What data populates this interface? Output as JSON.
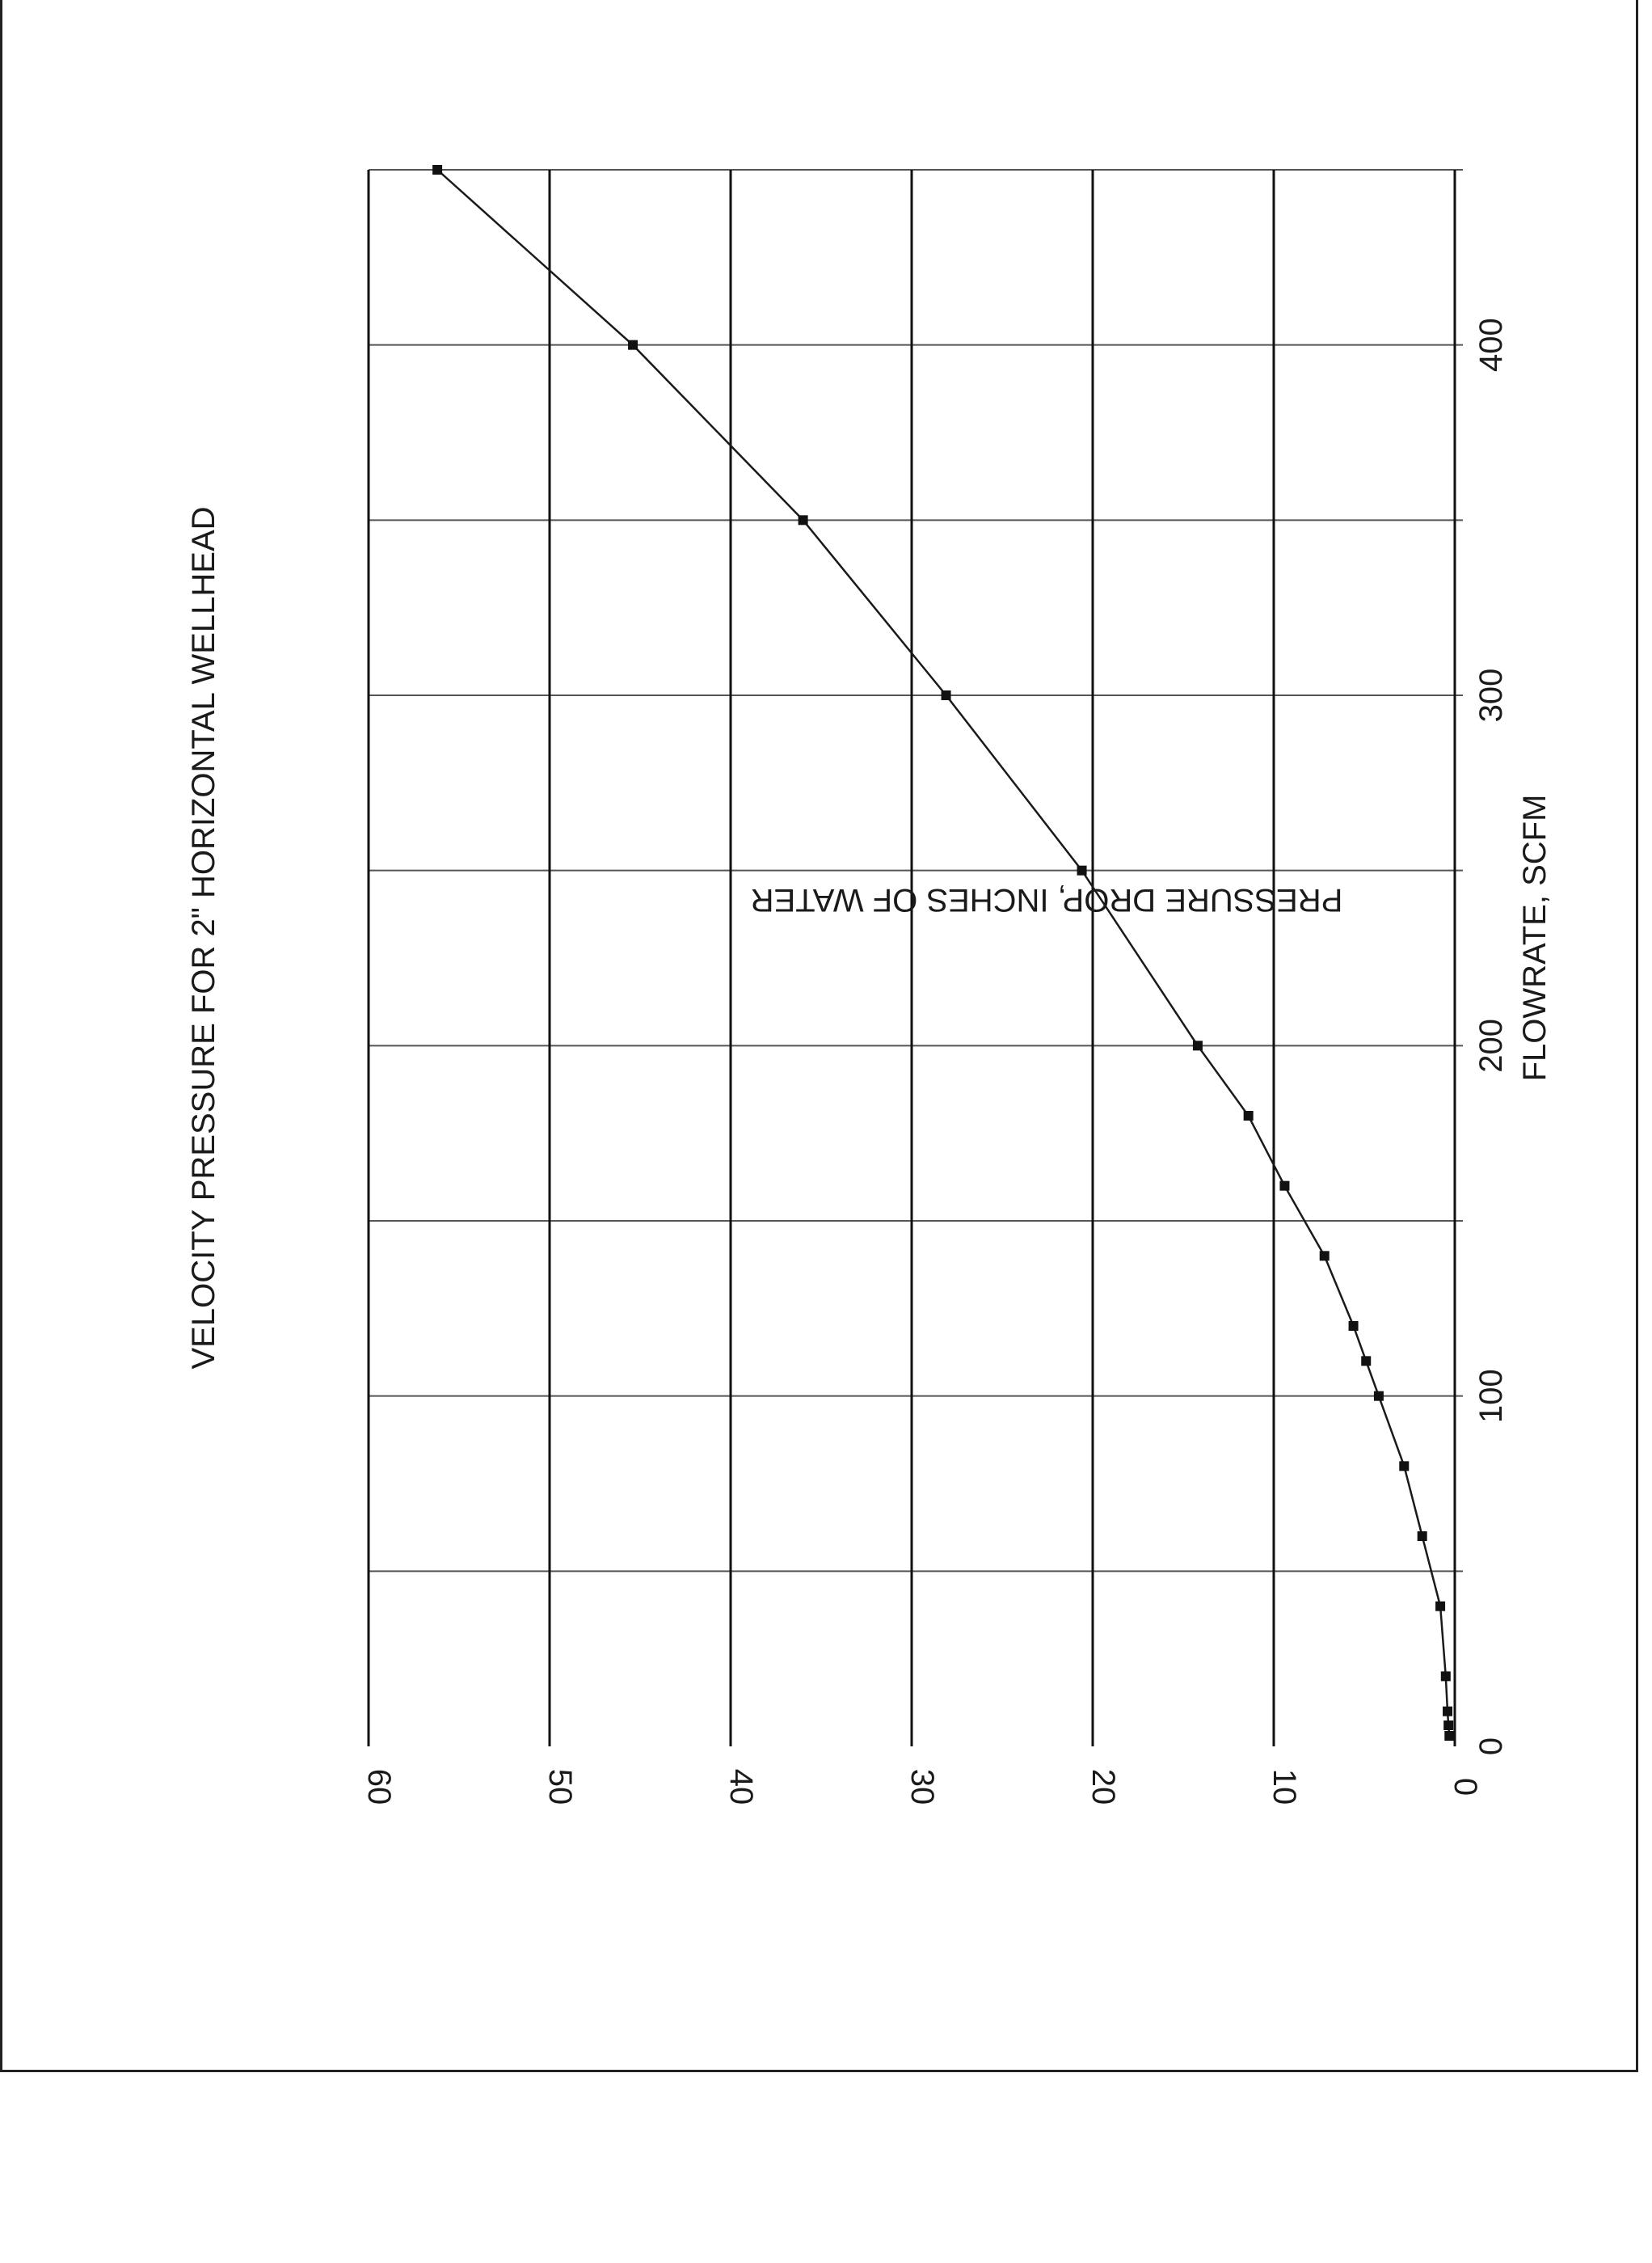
{
  "chart_data": {
    "type": "line",
    "title": "VELOCITY PRESSURE FOR 2\" HORIZONTAL WELLHEAD",
    "xlabel": "FLOWRATE, SCFM",
    "ylabel": "PRESSURE DROP, INCHES OF WATER",
    "xlim": [
      0,
      450
    ],
    "ylim": [
      0,
      60
    ],
    "x_ticks": [
      0,
      100,
      200,
      300,
      400
    ],
    "x_tick_labels": [
      "0",
      "100",
      "200",
      "300",
      "400"
    ],
    "y_ticks": [
      0,
      10,
      20,
      30,
      40,
      50,
      60
    ],
    "y_tick_labels": [
      "0",
      "10",
      "20",
      "30",
      "40",
      "50",
      "60"
    ],
    "x_gridlines": [
      50,
      100,
      150,
      200,
      250,
      300,
      350,
      400,
      450
    ],
    "y_gridlines": [
      10,
      20,
      30,
      40,
      50,
      60
    ],
    "grid": true,
    "orientation": "rotated 90 degrees counter-clockwise on the page",
    "series": [
      {
        "marker": "square",
        "x": [
          3,
          6,
          10,
          20,
          40,
          60,
          80,
          100,
          110,
          120,
          140,
          160,
          180,
          200,
          250,
          300,
          350,
          400,
          450
        ],
        "y": [
          0.3,
          0.35,
          0.4,
          0.5,
          0.8,
          1.8,
          2.8,
          4.2,
          4.9,
          5.6,
          7.2,
          9.4,
          11.4,
          14.2,
          20.6,
          28.1,
          36.0,
          45.4,
          56.2
        ]
      }
    ]
  }
}
